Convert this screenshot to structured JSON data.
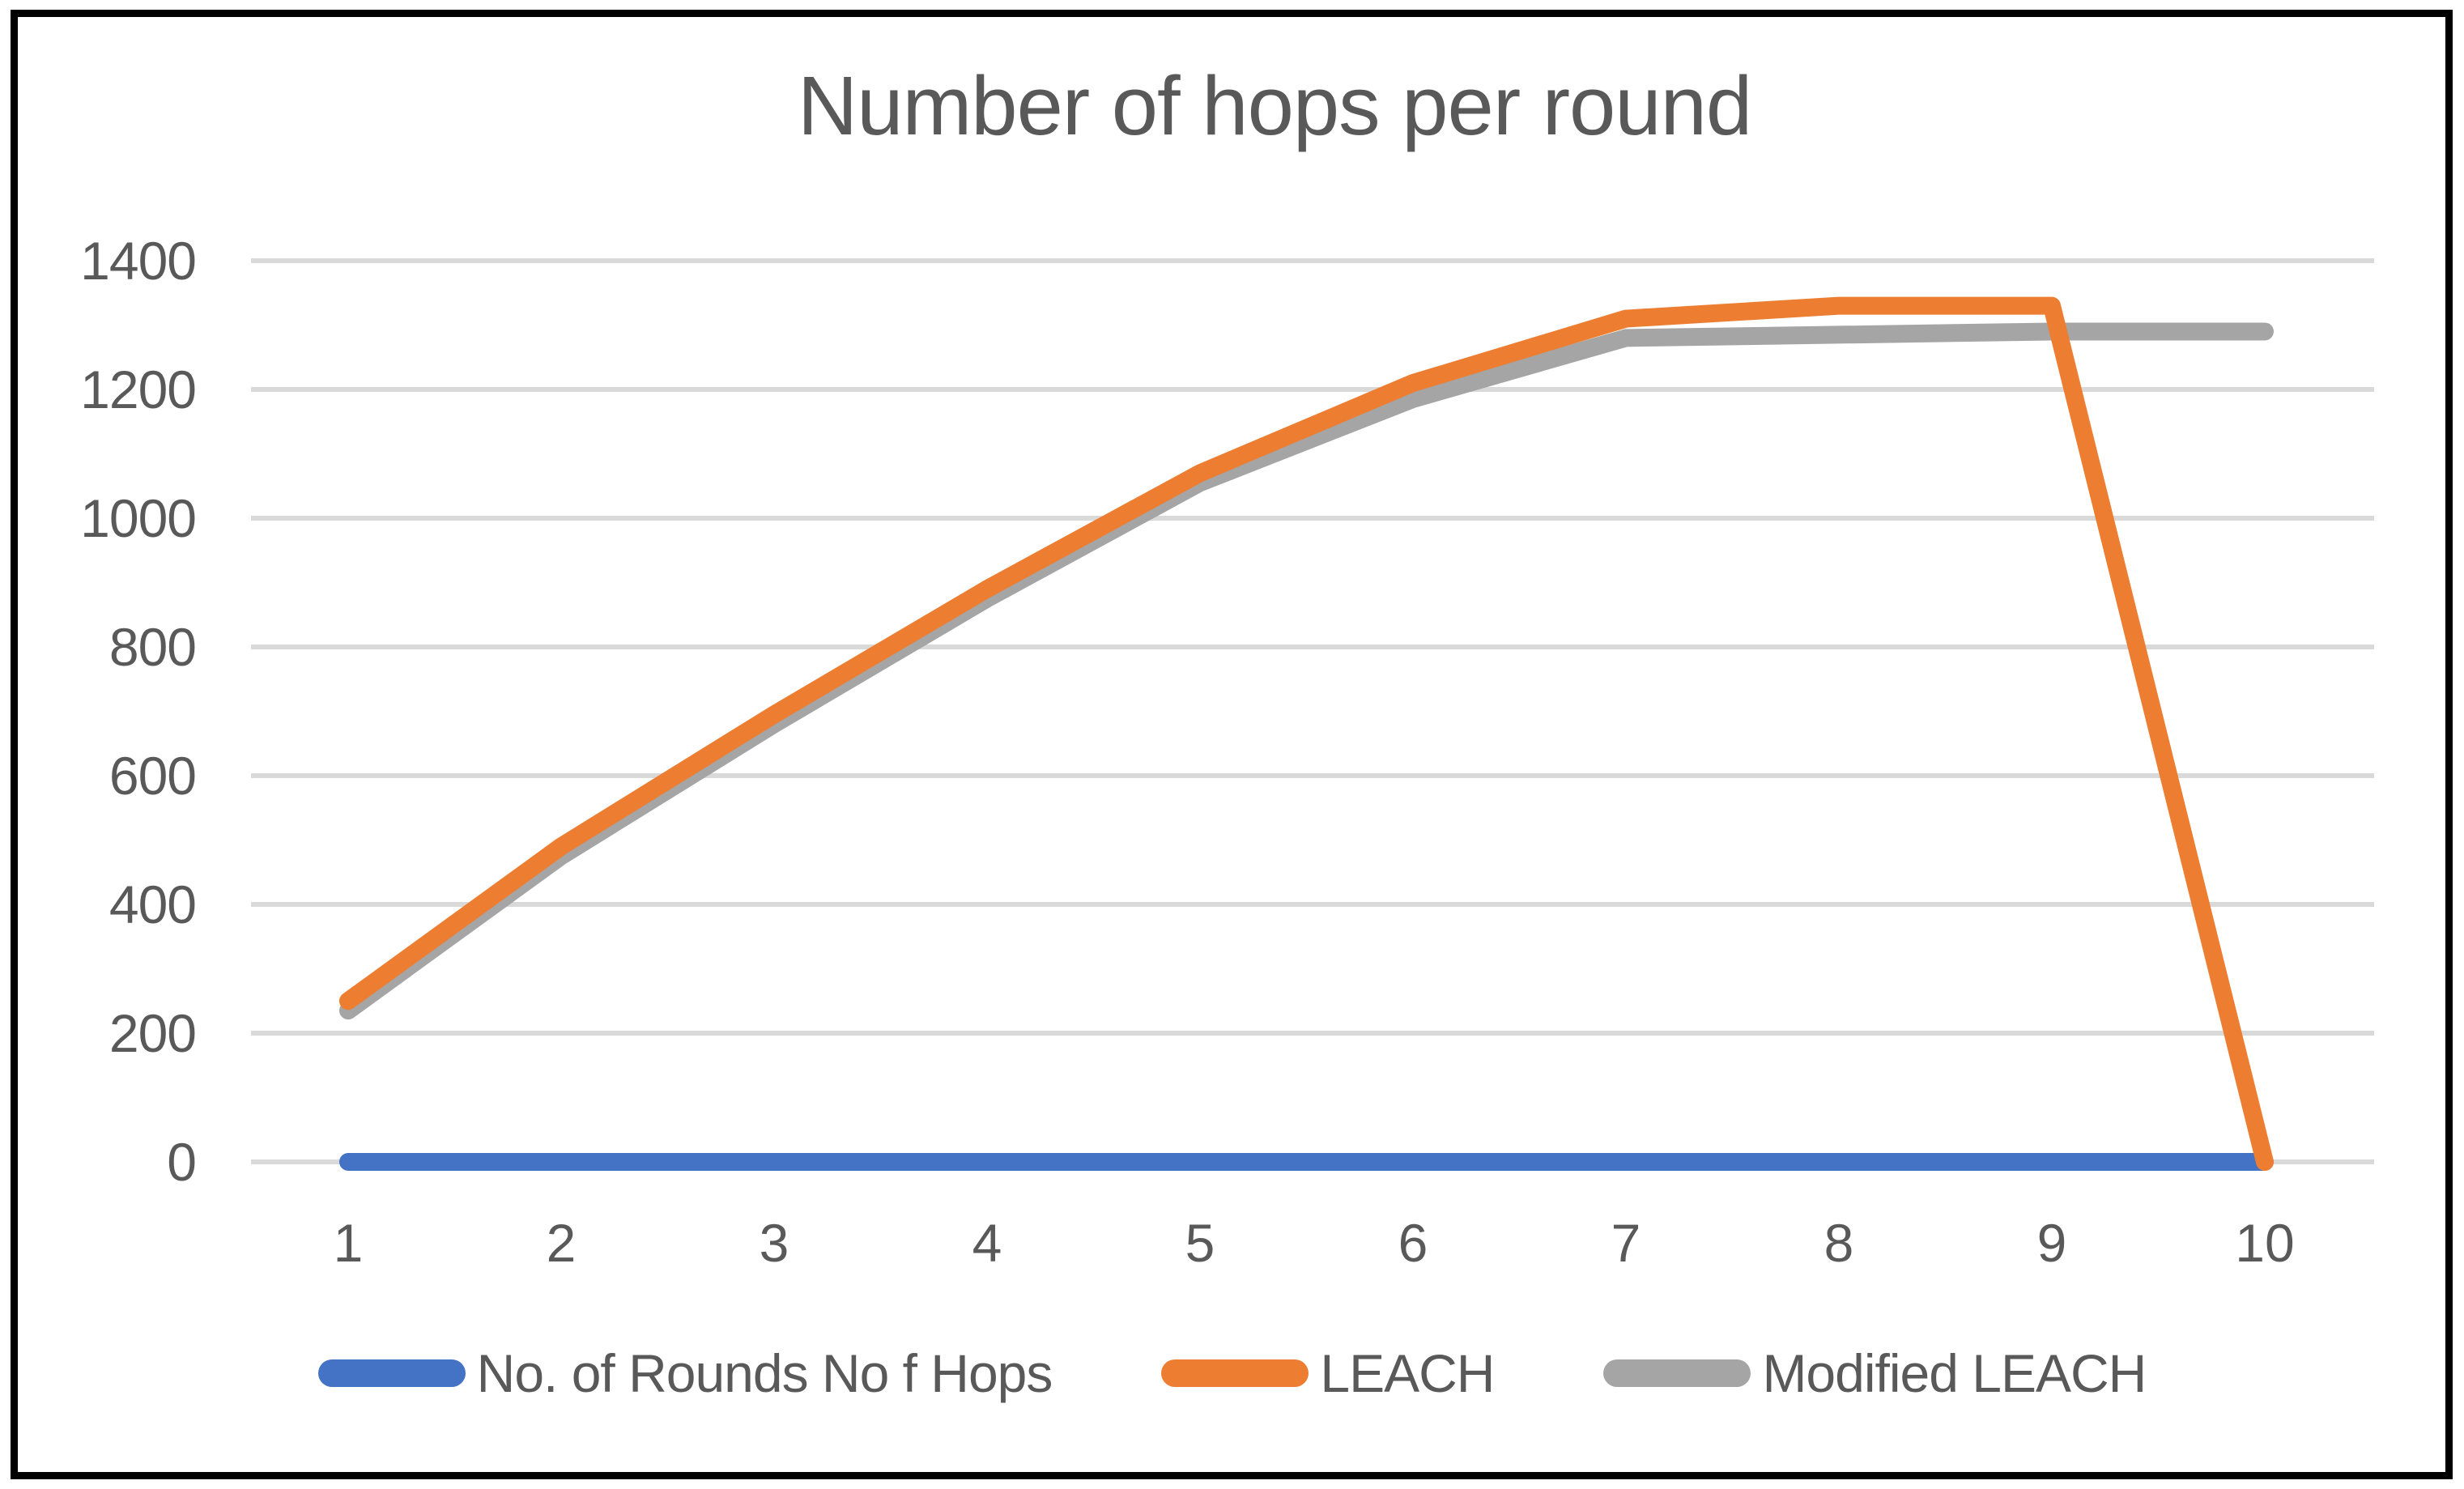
{
  "chart_data": {
    "type": "line",
    "title": "Number of hops per round",
    "x": [
      1,
      2,
      3,
      4,
      5,
      6,
      7,
      8,
      9,
      10
    ],
    "xticks": [
      "1",
      "2",
      "3",
      "4",
      "5",
      "6",
      "7",
      "8",
      "9",
      "10"
    ],
    "yticks": [
      0,
      200,
      400,
      600,
      800,
      1000,
      1200,
      1400
    ],
    "ylim": [
      0,
      1400
    ],
    "grid": true,
    "legend_position": "bottom",
    "series": [
      {
        "name": "No. of Rounds No f Hops",
        "color": "#4472C4",
        "values": [
          0,
          0,
          0,
          0,
          0,
          0,
          0,
          0,
          0,
          0
        ]
      },
      {
        "name": "LEACH",
        "color": "#ED7D31",
        "values": [
          250,
          490,
          695,
          890,
          1070,
          1210,
          1310,
          1330,
          1330,
          0
        ]
      },
      {
        "name": "Modified LEACH",
        "color": "#A5A5A5",
        "values": [
          235,
          475,
          680,
          875,
          1055,
          1185,
          1280,
          1285,
          1290,
          1290
        ]
      }
    ],
    "colors": {
      "title_text": "#595959",
      "tick_text": "#595959",
      "gridline": "#D9D9D9",
      "frame_border": "#000000",
      "background": "#FFFFFF"
    }
  }
}
